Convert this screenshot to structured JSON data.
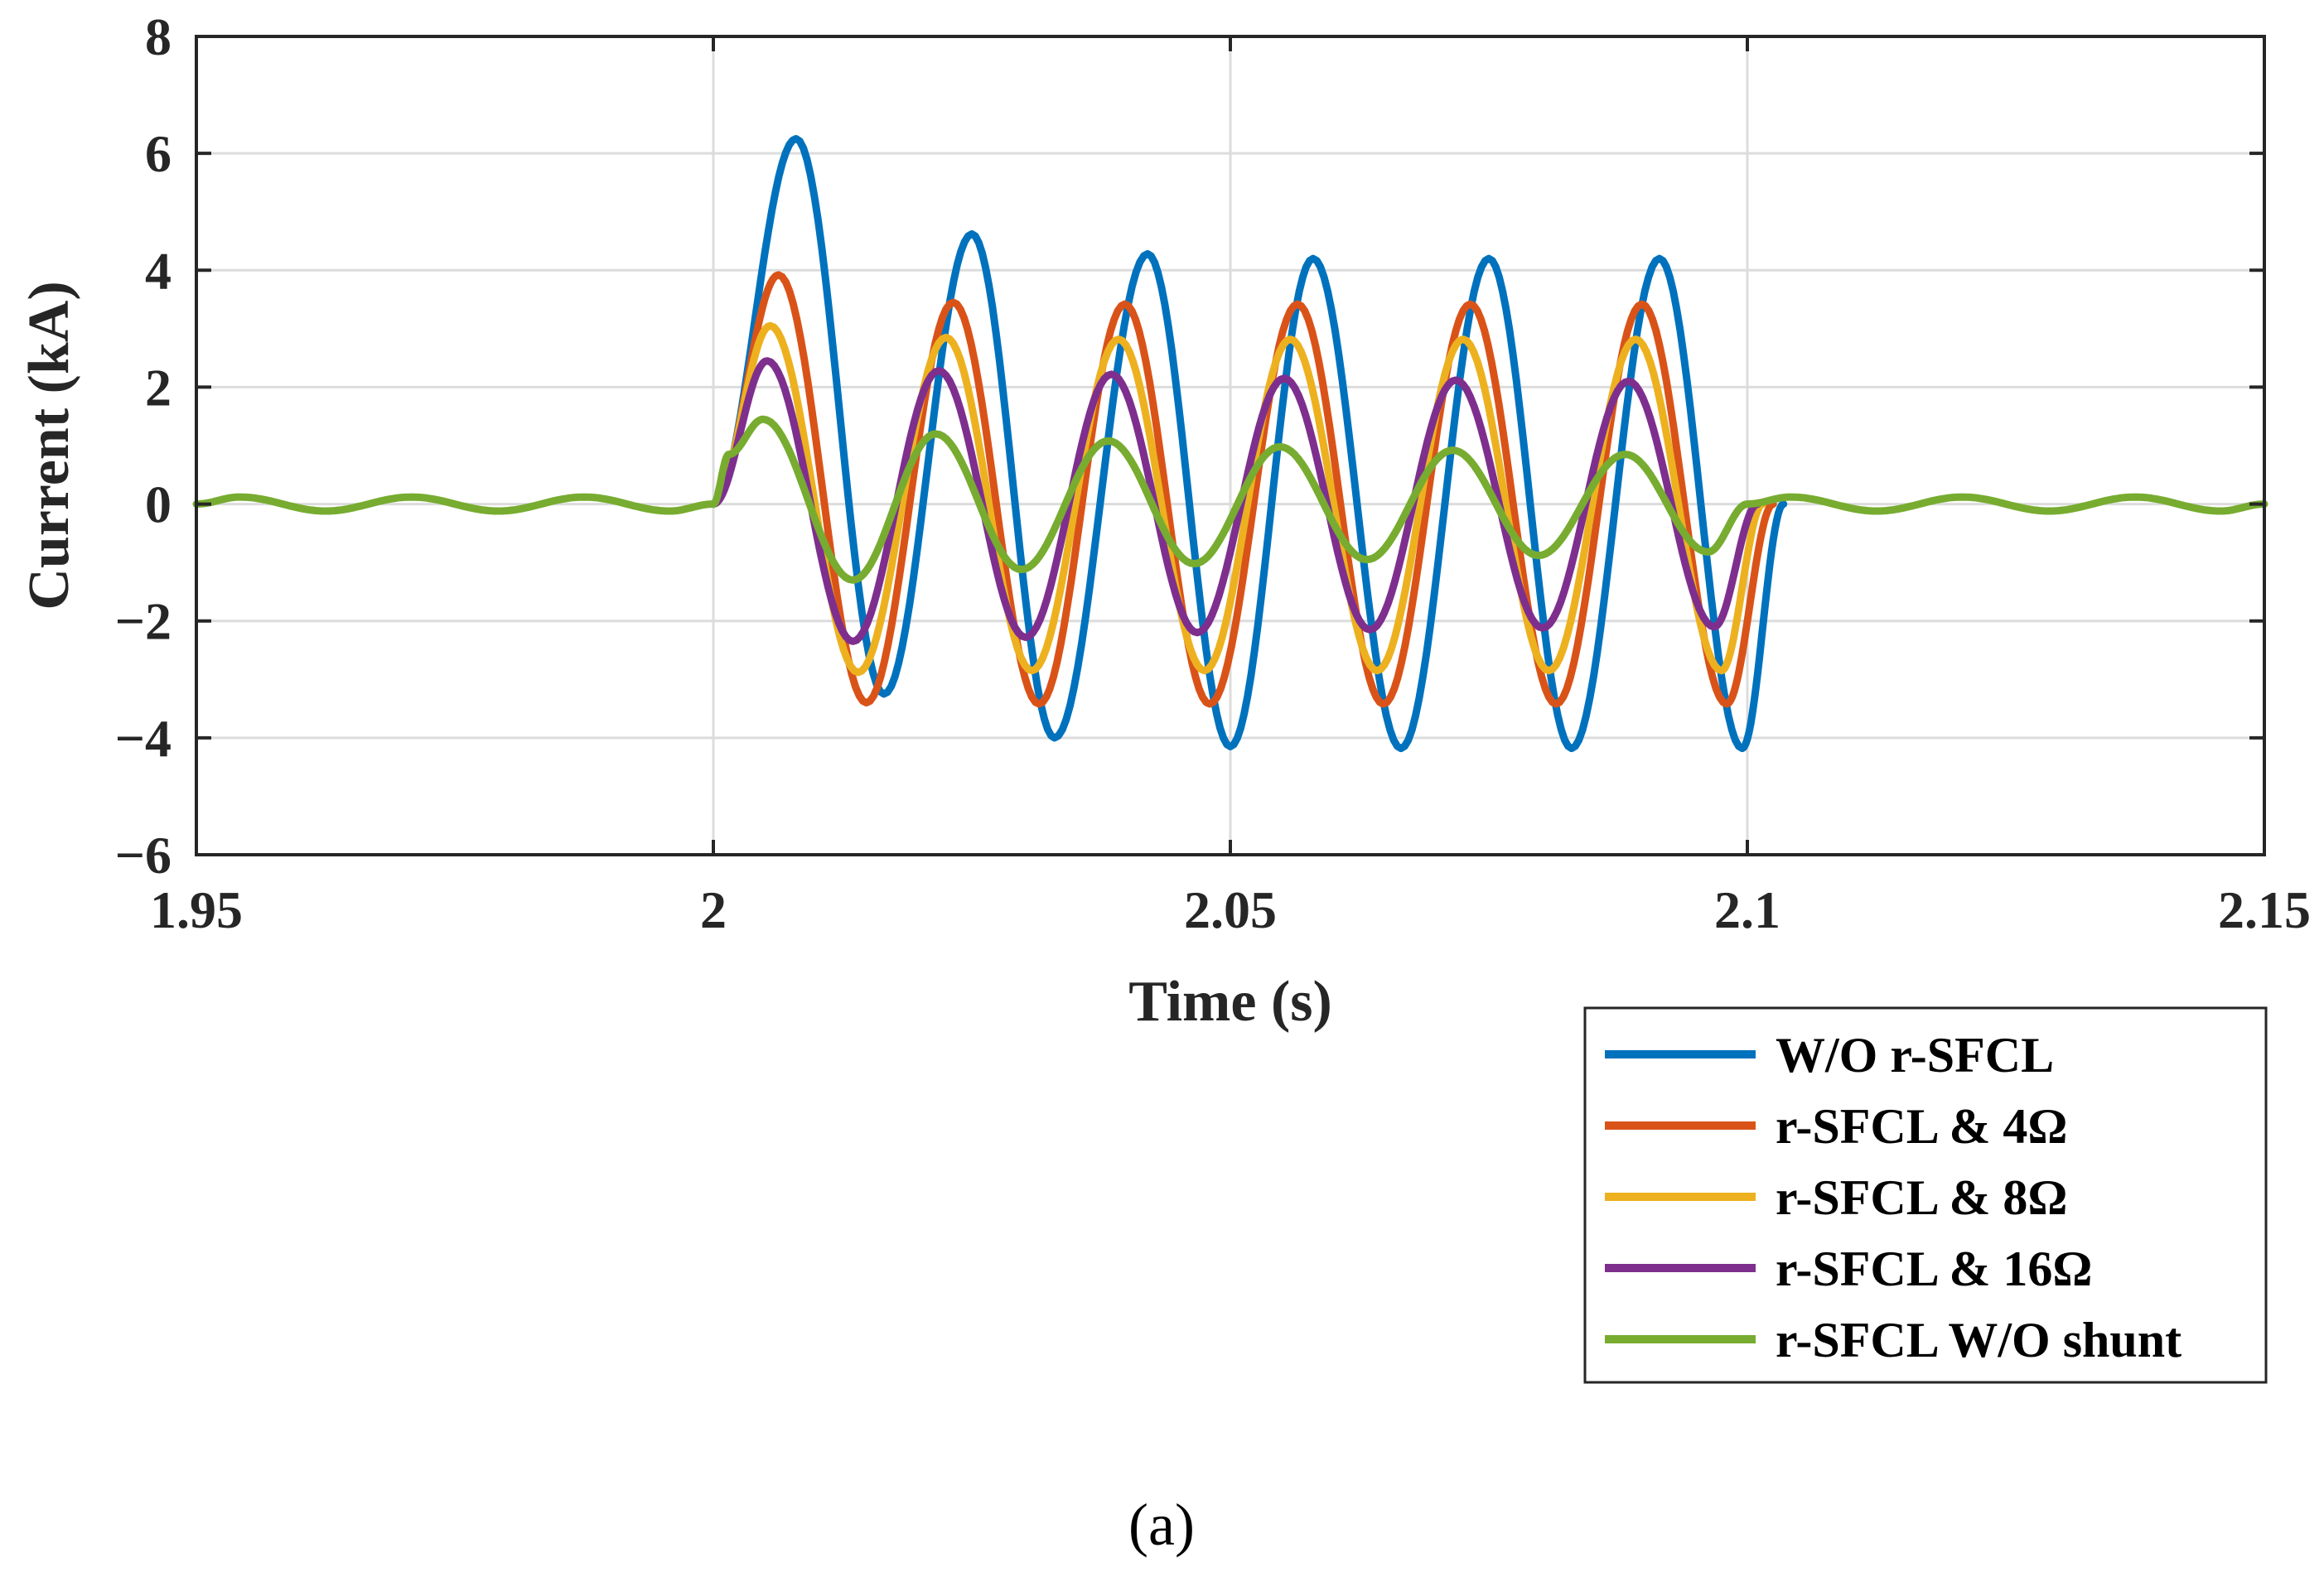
{
  "chart_data": {
    "type": "line",
    "xlabel": "Time (s)",
    "ylabel": "Current (kA)",
    "xlim": [
      1.95,
      2.15
    ],
    "ylim": [
      -6,
      8
    ],
    "xticks": [
      1.95,
      2.0,
      2.05,
      2.1,
      2.15
    ],
    "xtick_labels": [
      "1.95",
      "2",
      "2.05",
      "2.1",
      "2.15"
    ],
    "yticks": [
      -6,
      -4,
      -2,
      0,
      2,
      4,
      6,
      8
    ],
    "ytick_labels": [
      "−6",
      "−4",
      "−2",
      "0",
      "2",
      "4",
      "6",
      "8"
    ],
    "grid": true,
    "legend_position": "below-right",
    "caption": "(a)",
    "series": [
      {
        "name": "W/O r-SFCL",
        "color": "#0072BD",
        "points": [
          [
            2.0,
            0.0
          ],
          [
            2.008,
            6.25
          ],
          [
            2.0165,
            -3.25
          ],
          [
            2.025,
            4.62
          ],
          [
            2.033,
            -4.0
          ],
          [
            2.042,
            4.28
          ],
          [
            2.05,
            -4.15
          ],
          [
            2.058,
            4.2
          ],
          [
            2.0665,
            -4.18
          ],
          [
            2.075,
            4.2
          ],
          [
            2.083,
            -4.18
          ],
          [
            2.0915,
            4.2
          ],
          [
            2.0995,
            -4.18
          ],
          [
            2.1035,
            0.0
          ]
        ]
      },
      {
        "name": "r-SFCL & 4Ω",
        "color": "#D95319",
        "points": [
          [
            2.0,
            0.0
          ],
          [
            2.0063,
            3.92
          ],
          [
            2.0148,
            -3.4
          ],
          [
            2.0232,
            3.45
          ],
          [
            2.0315,
            -3.42
          ],
          [
            2.0398,
            3.42
          ],
          [
            2.048,
            -3.42
          ],
          [
            2.0565,
            3.42
          ],
          [
            2.0648,
            -3.42
          ],
          [
            2.0732,
            3.42
          ],
          [
            2.0815,
            -3.42
          ],
          [
            2.0898,
            3.42
          ],
          [
            2.098,
            -3.42
          ],
          [
            2.1025,
            0.0
          ]
        ]
      },
      {
        "name": "r-SFCL & 8Ω",
        "color": "#EDB120",
        "points": [
          [
            2.0,
            0.0
          ],
          [
            2.0055,
            3.05
          ],
          [
            2.014,
            -2.88
          ],
          [
            2.0225,
            2.85
          ],
          [
            2.0308,
            -2.85
          ],
          [
            2.0392,
            2.82
          ],
          [
            2.0475,
            -2.85
          ],
          [
            2.0558,
            2.82
          ],
          [
            2.0642,
            -2.85
          ],
          [
            2.0725,
            2.82
          ],
          [
            2.0808,
            -2.85
          ],
          [
            2.0892,
            2.82
          ],
          [
            2.0975,
            -2.85
          ],
          [
            2.1015,
            0.0
          ]
        ]
      },
      {
        "name": "r-SFCL & 16Ω",
        "color": "#7E2F8E",
        "points": [
          [
            2.0,
            0.0
          ],
          [
            2.0052,
            2.45
          ],
          [
            2.0135,
            -2.35
          ],
          [
            2.0218,
            2.28
          ],
          [
            2.0302,
            -2.28
          ],
          [
            2.0385,
            2.22
          ],
          [
            2.0468,
            -2.2
          ],
          [
            2.0552,
            2.15
          ],
          [
            2.0635,
            -2.15
          ],
          [
            2.0718,
            2.12
          ],
          [
            2.0802,
            -2.12
          ],
          [
            2.0885,
            2.1
          ],
          [
            2.0968,
            -2.1
          ],
          [
            2.101,
            0.0
          ]
        ]
      },
      {
        "name": "r-SFCL W/O shunt",
        "color": "#77AC30",
        "points": [
          [
            1.95,
            0.0
          ],
          [
            1.9542,
            0.12
          ],
          [
            1.9625,
            -0.12
          ],
          [
            1.9708,
            0.12
          ],
          [
            1.9792,
            -0.12
          ],
          [
            1.9875,
            0.12
          ],
          [
            1.9958,
            -0.12
          ],
          [
            2.0,
            0.0
          ],
          [
            2.0015,
            0.85
          ],
          [
            2.0048,
            1.45
          ],
          [
            2.0135,
            -1.3
          ],
          [
            2.0215,
            1.2
          ],
          [
            2.0298,
            -1.12
          ],
          [
            2.0382,
            1.08
          ],
          [
            2.0465,
            -1.02
          ],
          [
            2.0548,
            0.98
          ],
          [
            2.0632,
            -0.95
          ],
          [
            2.0715,
            0.92
          ],
          [
            2.0798,
            -0.88
          ],
          [
            2.0882,
            0.85
          ],
          [
            2.0962,
            -0.82
          ],
          [
            2.1,
            0.0
          ],
          [
            2.1042,
            0.12
          ],
          [
            2.1125,
            -0.12
          ],
          [
            2.1208,
            0.12
          ],
          [
            2.1292,
            -0.12
          ],
          [
            2.1375,
            0.12
          ],
          [
            2.1458,
            -0.12
          ],
          [
            2.15,
            0.0
          ]
        ]
      }
    ]
  }
}
